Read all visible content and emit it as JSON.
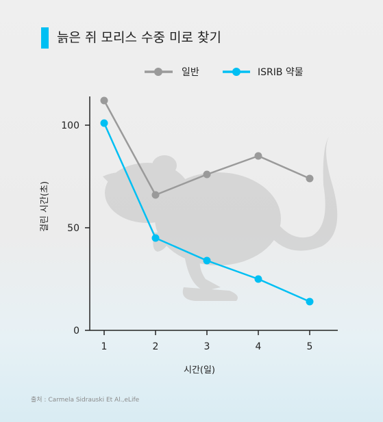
{
  "title": "늙은 쥐 모리스 수중 미로 찾기",
  "source": "출처 : Carmela Sidrauski Et Al.,eLife",
  "colors": {
    "accent": "#00bff3",
    "normal": "#9a9a9a",
    "isrib": "#00bff3",
    "axis": "#222222",
    "mouse": "#d2d2d2"
  },
  "chart_data": {
    "type": "line",
    "x": [
      1,
      2,
      3,
      4,
      5
    ],
    "xlabel": "시간(일)",
    "ylabel": "걸린 시간(초)",
    "ylim": [
      0,
      100
    ],
    "xlim": [
      1,
      5
    ],
    "yticks": [
      0,
      50,
      100
    ],
    "xticks": [
      1,
      2,
      3,
      4,
      5
    ],
    "grid": false,
    "legend_position": "top-right",
    "series": [
      {
        "name": "일반",
        "color": "#9a9a9a",
        "values": [
          112,
          66,
          76,
          85,
          74
        ]
      },
      {
        "name": "ISRIB 약물",
        "color": "#00bff3",
        "values": [
          101,
          45,
          34,
          25,
          14
        ]
      }
    ]
  }
}
